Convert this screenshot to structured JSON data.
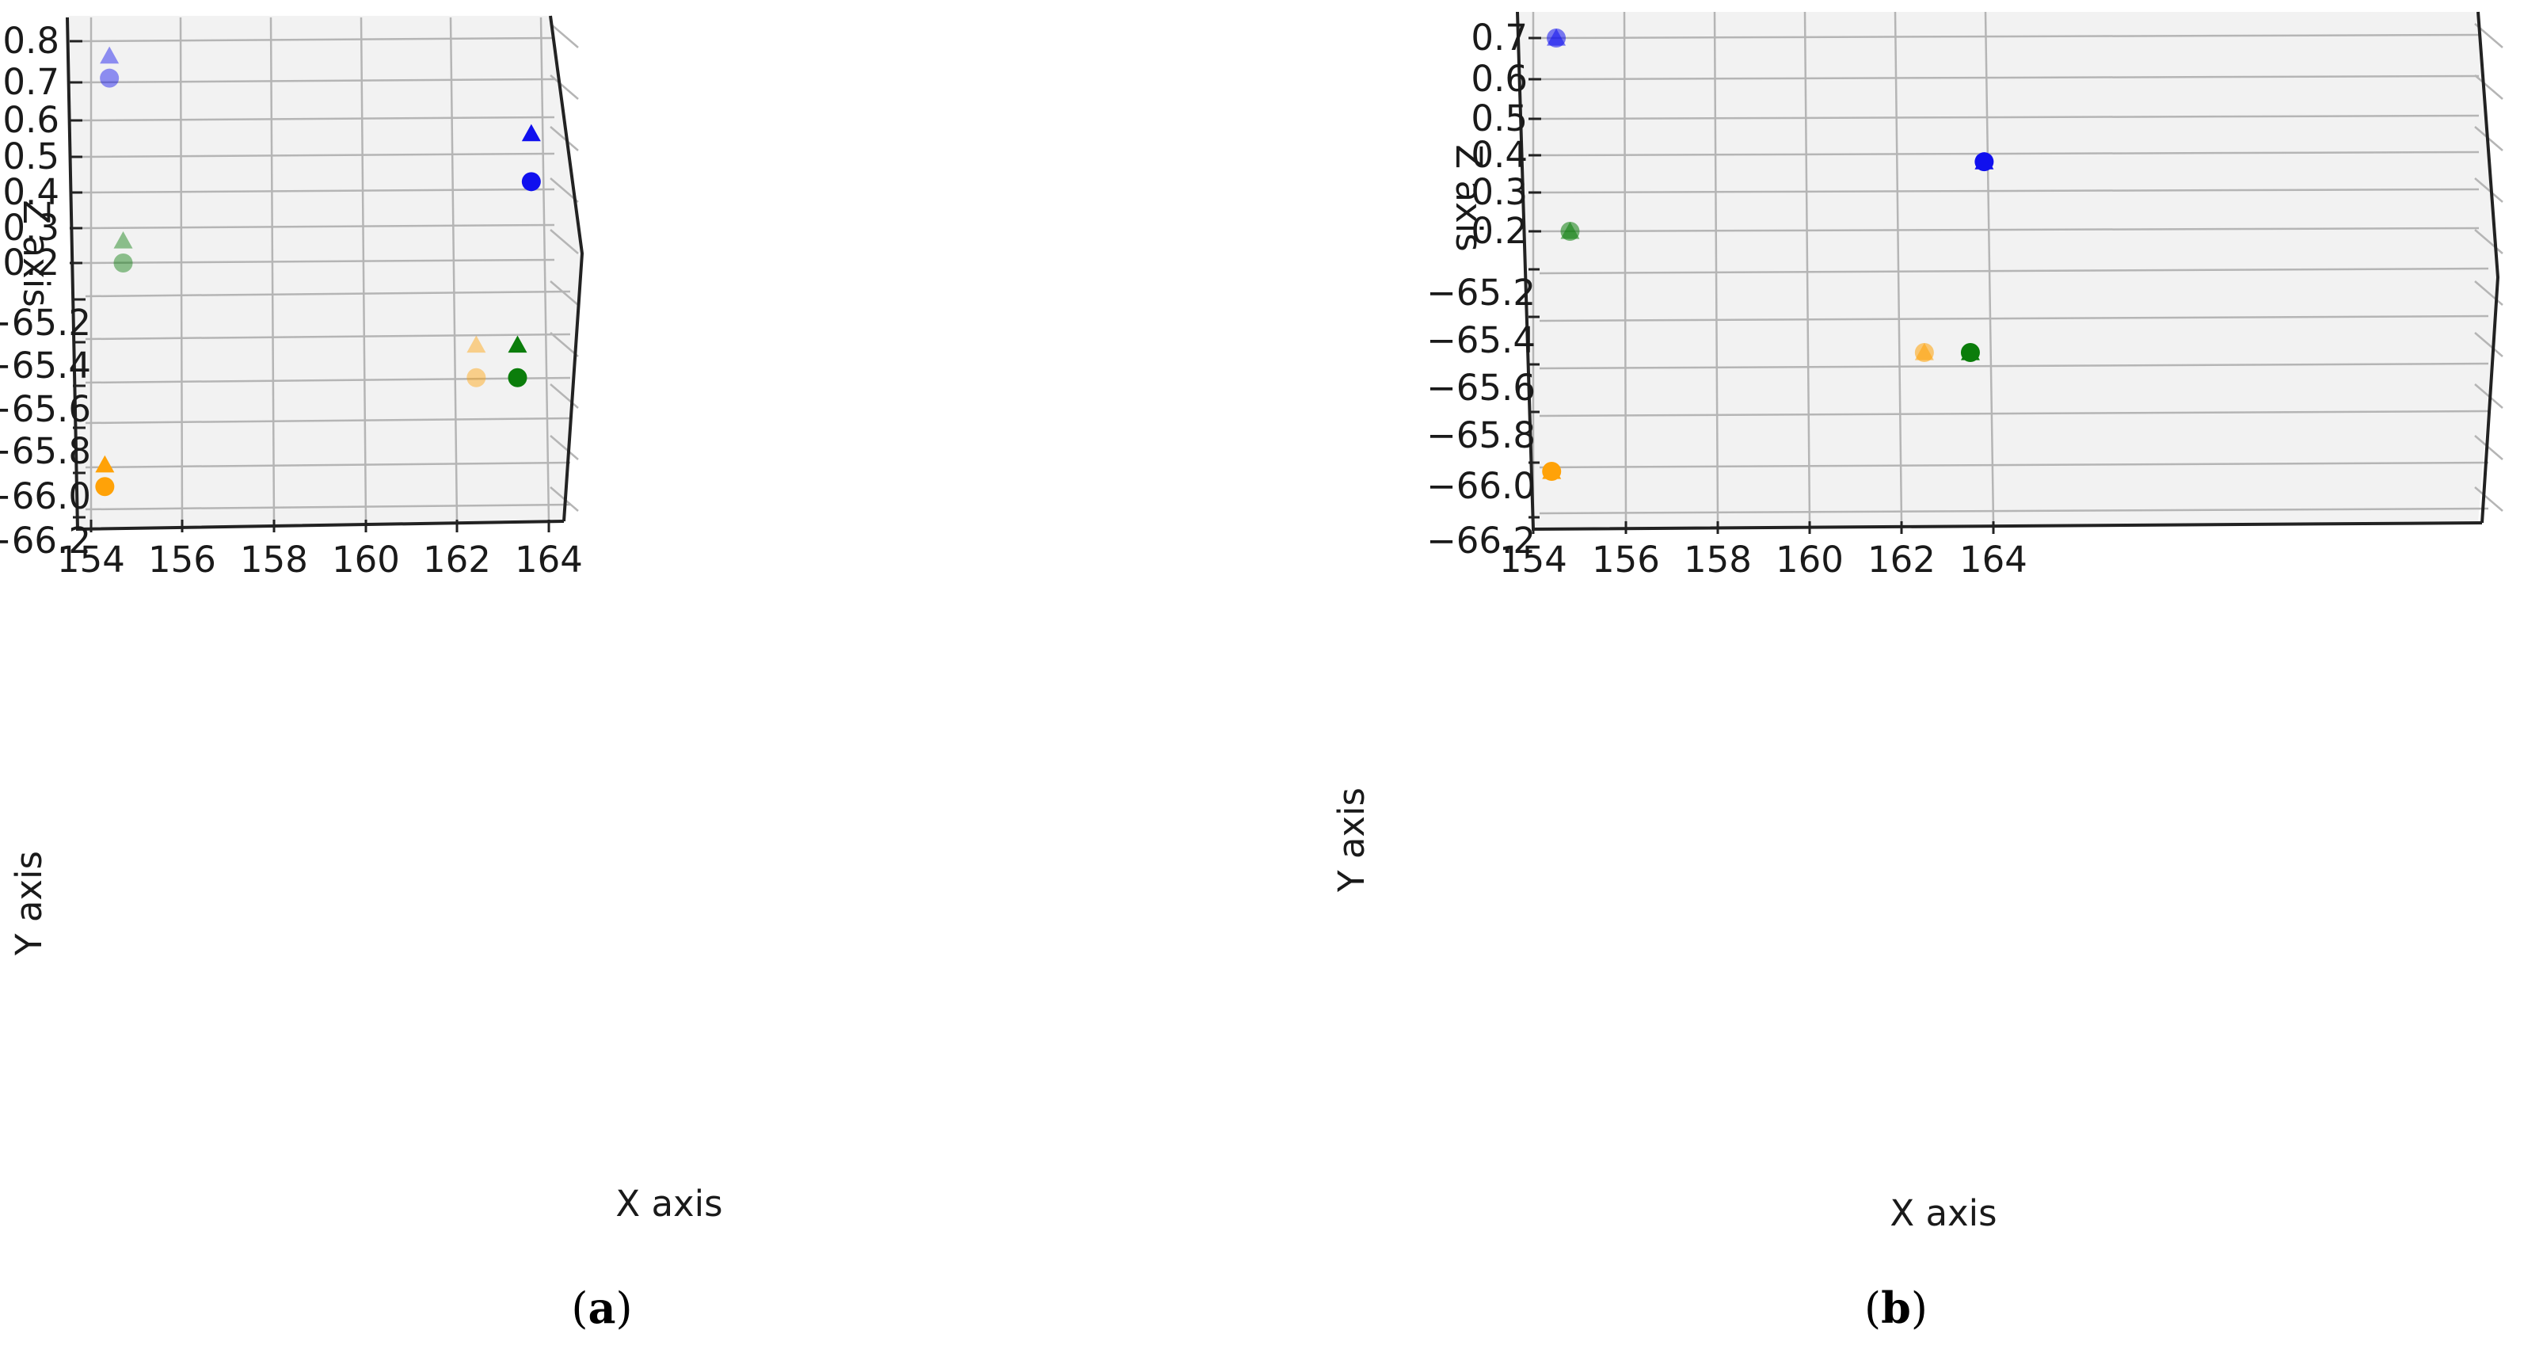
{
  "colors": {
    "blue": "#1010ee",
    "green": "#0b7d0b",
    "orange": "#ffa208",
    "pane": "#f2f2f2",
    "grid": "#b5b5b5",
    "axis": "#222222"
  },
  "chart_data": [
    {
      "type": "scatter",
      "panel": "a",
      "caption": "(a)",
      "caption_letter": "a",
      "xlabel": "X axis",
      "ylabel": "Y axis",
      "zlabel": "Z axis",
      "x_ticks": [
        "154",
        "156",
        "158",
        "160",
        "162",
        "164"
      ],
      "y_ticks": [
        "−65.2",
        "−65.4",
        "−65.6",
        "−65.8",
        "−66.0",
        "−66.2"
      ],
      "z_ticks": [
        "0.8",
        "0.7",
        "0.6",
        "0.5",
        "0.4",
        "0.3",
        "0.2"
      ],
      "series": [
        {
          "marker": "triangle",
          "color": "blue",
          "alpha": 0.45,
          "points": [
            {
              "x": 154.4,
              "y": -65.95,
              "z": 0.76
            }
          ]
        },
        {
          "marker": "circle",
          "color": "blue",
          "alpha": 0.45,
          "points": [
            {
              "x": 154.4,
              "y": -65.95,
              "z": 0.7
            }
          ]
        },
        {
          "marker": "triangle",
          "color": "green",
          "alpha": 0.45,
          "points": [
            {
              "x": 154.7,
              "y": -65.95,
              "z": 0.26
            }
          ]
        },
        {
          "marker": "circle",
          "color": "green",
          "alpha": 0.45,
          "points": [
            {
              "x": 154.7,
              "y": -65.95,
              "z": 0.2
            }
          ]
        },
        {
          "marker": "triangle",
          "color": "blue",
          "alpha": 1.0,
          "points": [
            {
              "x": 163.6,
              "y": -65.9,
              "z": 0.55
            }
          ]
        },
        {
          "marker": "circle",
          "color": "blue",
          "alpha": 1.0,
          "points": [
            {
              "x": 163.6,
              "y": -65.9,
              "z": 0.42
            }
          ]
        },
        {
          "marker": "triangle",
          "color": "orange",
          "alpha": 0.45,
          "points": [
            {
              "x": 162.4,
              "y": -65.3,
              "z": 0.0
            }
          ]
        },
        {
          "marker": "circle",
          "color": "orange",
          "alpha": 0.45,
          "points": [
            {
              "x": 162.4,
              "y": -65.45,
              "z": 0.0
            }
          ]
        },
        {
          "marker": "triangle",
          "color": "green",
          "alpha": 1.0,
          "points": [
            {
              "x": 163.3,
              "y": -65.3,
              "z": 0.0
            }
          ]
        },
        {
          "marker": "circle",
          "color": "green",
          "alpha": 1.0,
          "points": [
            {
              "x": 163.3,
              "y": -65.45,
              "z": 0.0
            }
          ]
        },
        {
          "marker": "triangle",
          "color": "orange",
          "alpha": 1.0,
          "points": [
            {
              "x": 154.3,
              "y": -65.85,
              "z": 0.0
            }
          ]
        },
        {
          "marker": "circle",
          "color": "orange",
          "alpha": 1.0,
          "points": [
            {
              "x": 154.3,
              "y": -65.95,
              "z": 0.0
            }
          ]
        }
      ]
    },
    {
      "type": "scatter",
      "panel": "b",
      "caption": "(b)",
      "caption_letter": "b",
      "xlabel": "X axis",
      "ylabel": "Y axis",
      "zlabel": "Z axis",
      "x_ticks": [
        "154",
        "156",
        "158",
        "160",
        "162",
        "164"
      ],
      "y_ticks": [
        "−65.2",
        "−65.4",
        "−65.6",
        "−65.8",
        "−66.0",
        "−66.2"
      ],
      "z_ticks": [
        "0.7",
        "0.6",
        "0.5",
        "0.4",
        "0.3",
        "0.2"
      ],
      "series": [
        {
          "marker": "triangle",
          "color": "blue",
          "alpha": 0.55,
          "points": [
            {
              "x": 154.5,
              "y": -65.95,
              "z": 0.7
            }
          ]
        },
        {
          "marker": "circle",
          "color": "blue",
          "alpha": 0.55,
          "points": [
            {
              "x": 154.5,
              "y": -65.95,
              "z": 0.7
            }
          ]
        },
        {
          "marker": "triangle",
          "color": "green",
          "alpha": 0.55,
          "points": [
            {
              "x": 154.8,
              "y": -65.95,
              "z": 0.2
            }
          ]
        },
        {
          "marker": "circle",
          "color": "green",
          "alpha": 0.55,
          "points": [
            {
              "x": 154.8,
              "y": -65.95,
              "z": 0.2
            }
          ]
        },
        {
          "marker": "triangle",
          "color": "blue",
          "alpha": 1.0,
          "points": [
            {
              "x": 163.8,
              "y": -65.9,
              "z": 0.38
            }
          ]
        },
        {
          "marker": "circle",
          "color": "blue",
          "alpha": 1.0,
          "points": [
            {
              "x": 163.8,
              "y": -65.9,
              "z": 0.38
            }
          ]
        },
        {
          "marker": "triangle",
          "color": "orange",
          "alpha": 0.55,
          "points": [
            {
              "x": 162.5,
              "y": -65.45,
              "z": 0.0
            }
          ]
        },
        {
          "marker": "circle",
          "color": "orange",
          "alpha": 0.55,
          "points": [
            {
              "x": 162.5,
              "y": -65.45,
              "z": 0.0
            }
          ]
        },
        {
          "marker": "triangle",
          "color": "green",
          "alpha": 1.0,
          "points": [
            {
              "x": 163.5,
              "y": -65.45,
              "z": 0.0
            }
          ]
        },
        {
          "marker": "circle",
          "color": "green",
          "alpha": 1.0,
          "points": [
            {
              "x": 163.5,
              "y": -65.45,
              "z": 0.0
            }
          ]
        },
        {
          "marker": "triangle",
          "color": "orange",
          "alpha": 1.0,
          "points": [
            {
              "x": 154.4,
              "y": -65.95,
              "z": 0.0
            }
          ]
        },
        {
          "marker": "circle",
          "color": "orange",
          "alpha": 1.0,
          "points": [
            {
              "x": 154.4,
              "y": -65.95,
              "z": 0.0
            }
          ]
        }
      ]
    }
  ]
}
